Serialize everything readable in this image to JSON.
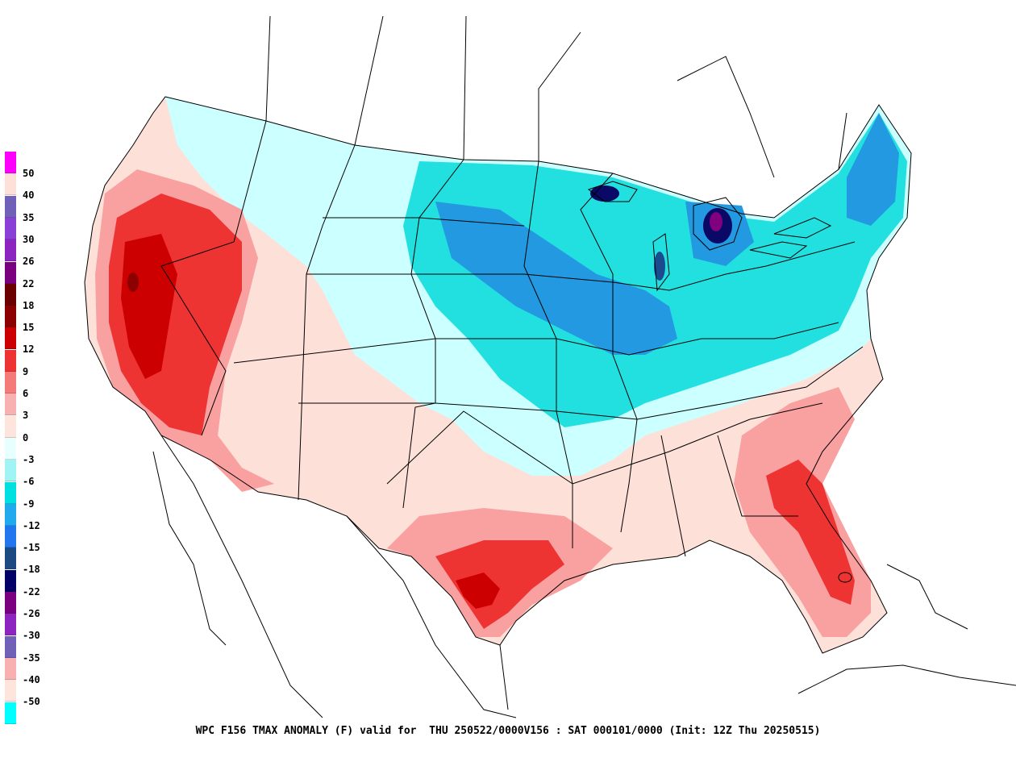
{
  "caption": "WPC F156 TMAX ANOMALY (F) valid for  THU 250522/0000V156 : SAT 000101/0000 (Init: 12Z Thu 20250515)",
  "legend": {
    "labels": [
      "50",
      "40",
      "35",
      "30",
      "26",
      "22",
      "18",
      "15",
      "12",
      "9",
      "6",
      "3",
      "0",
      "-3",
      "-6",
      "-9",
      "-12",
      "-15",
      "-18",
      "-22",
      "-26",
      "-30",
      "-35",
      "-40",
      "-50"
    ],
    "colors": [
      "#ff00ff",
      "#fde0d8",
      "#7060b8",
      "#8a3fd6",
      "#8e24c0",
      "#7a0080",
      "#6a0000",
      "#8c0000",
      "#cc0000",
      "#ee3333",
      "#f57a7a",
      "#f9b0b0",
      "#fde4dc",
      "#e8ffff",
      "#a0f4f4",
      "#00e0e0",
      "#22aaee",
      "#2277ee",
      "#1a4a80",
      "#000066",
      "#7a0080",
      "#8e24c0",
      "#7060b8",
      "#f9b0b0",
      "#fde4dc",
      "#00ffff"
    ]
  },
  "colors": {
    "red_dark": "#b30000",
    "red": "#ee3333",
    "red_light": "#f9a0a0",
    "pink": "#fcd6d0",
    "cyan_light": "#ccffff",
    "cyan": "#22e0e0",
    "blue": "#2299e0",
    "blue_dark": "#1a4a90",
    "navy": "#0a0a66",
    "purple": "#800080"
  }
}
